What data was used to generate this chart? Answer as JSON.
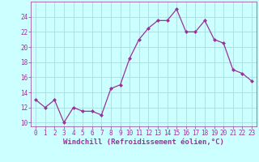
{
  "x": [
    0,
    1,
    2,
    3,
    4,
    5,
    6,
    7,
    8,
    9,
    10,
    11,
    12,
    13,
    14,
    15,
    16,
    17,
    18,
    19,
    20,
    21,
    22,
    23
  ],
  "y": [
    13.0,
    12.0,
    13.0,
    10.0,
    12.0,
    11.5,
    11.5,
    11.0,
    14.5,
    15.0,
    18.5,
    21.0,
    22.5,
    23.5,
    23.5,
    25.0,
    22.0,
    22.0,
    23.5,
    21.0,
    20.5,
    17.0,
    16.5,
    15.5
  ],
  "line_color": "#993399",
  "marker": "D",
  "marker_size": 2.0,
  "bg_color": "#ccffff",
  "grid_color": "#aadddd",
  "xlabel": "Windchill (Refroidissement éolien,°C)",
  "xlabel_color": "#993399",
  "xlabel_fontsize": 6.5,
  "tick_color": "#993399",
  "tick_fontsize": 5.5,
  "ylim": [
    9.5,
    26
  ],
  "xlim": [
    -0.5,
    23.5
  ],
  "yticks": [
    10,
    12,
    14,
    16,
    18,
    20,
    22,
    24
  ],
  "linewidth": 0.9
}
